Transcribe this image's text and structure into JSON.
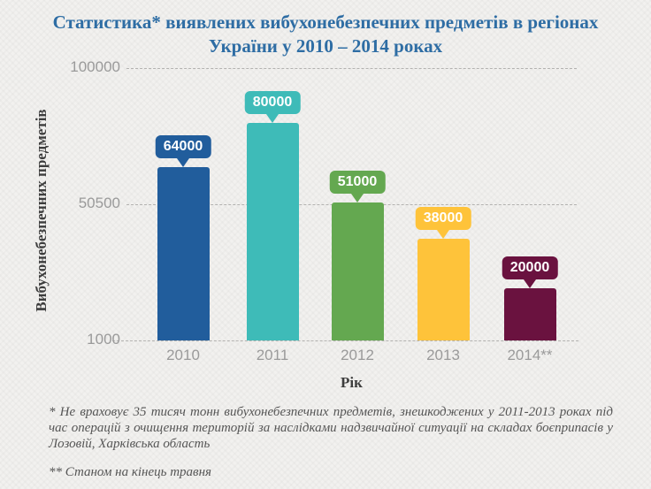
{
  "chart_data": {
    "type": "bar",
    "title": "Статистика* виявлених вибухонебезпечних предметів в регіонах України у 2010 – 2014 роках",
    "categories": [
      "2010",
      "2011",
      "2012",
      "2013",
      "2014**"
    ],
    "values": [
      64000,
      80000,
      51000,
      38000,
      20000
    ],
    "data_labels": [
      "64000",
      "80000",
      "51000",
      "38000",
      "20000"
    ],
    "bar_colors": [
      "#215d9c",
      "#3ebbb8",
      "#64a850",
      "#fec33a",
      "#6a123f"
    ],
    "xlabel": "Рік",
    "ylabel": "Вибухонебезпечних предметів",
    "ylim": [
      1000,
      100000
    ],
    "y_ticks": [
      {
        "value": 100000,
        "label": "100000"
      },
      {
        "value": 50500,
        "label": "50500"
      },
      {
        "value": 1000,
        "label": "1000"
      }
    ],
    "grid": "horizontal dashed",
    "legend": "none",
    "data_label_style": "callout bubble above each bar, bubble color matches bar"
  },
  "footnotes": {
    "note1": "* Не враховує 35 тисяч тонн вибухонебезпечних предметів, знешкоджених у 2011-2013 роках під час операцій з очищення територій за наслідками надзвичайної ситуації на складах боєприпасів у Лозовій, Харківська область",
    "note2": "** Станом на кінець травня"
  },
  "colors": {
    "title_text": "#2e6da4",
    "tick_text": "#9a9a9a",
    "axis_title_text": "#3d3d3d",
    "footnote_text": "#565656",
    "gridline": "#b3b2b0",
    "background": "#f2f1ef",
    "data_label_text": "#ffffff"
  }
}
